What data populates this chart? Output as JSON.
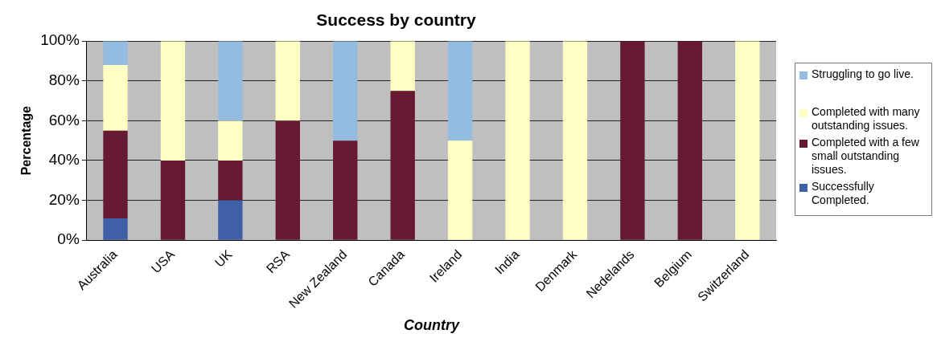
{
  "chart_data": {
    "type": "bar",
    "title": "Success by country",
    "xlabel": "Country",
    "ylabel": "Percentage",
    "stacked": true,
    "grid": "y",
    "legend": "right",
    "categories": [
      "Australia",
      "USA",
      "UK",
      "RSA",
      "New Zealand",
      "Canada",
      "Ireland",
      "India",
      "Denmark",
      "Nedelands",
      "Belgium",
      "Switzerland"
    ],
    "series": [
      {
        "name": "Successfully Completed.",
        "color": "#3f5fa6",
        "values": [
          11,
          0,
          20,
          0,
          0,
          0,
          0,
          0,
          0,
          0,
          0,
          0
        ]
      },
      {
        "name": "Completed with a few small outstanding issues.",
        "color": "#651a32",
        "values": [
          44,
          40,
          20,
          60,
          50,
          75,
          0,
          0,
          0,
          100,
          100,
          0
        ]
      },
      {
        "name": "Completed with many outstanding issues.",
        "color": "#ffffc4",
        "values": [
          33,
          60,
          20,
          40,
          0,
          25,
          50,
          100,
          100,
          0,
          0,
          100
        ]
      },
      {
        "name": "Struggling to go live.",
        "color": "#94bce0",
        "values": [
          12,
          0,
          40,
          0,
          50,
          0,
          50,
          0,
          0,
          0,
          0,
          0
        ]
      }
    ],
    "ylim": [
      0,
      100
    ],
    "yticks": [
      {
        "value": 0,
        "label": "0%"
      },
      {
        "value": 20,
        "label": "20%"
      },
      {
        "value": 40,
        "label": "40%"
      },
      {
        "value": 60,
        "label": "60%"
      },
      {
        "value": 80,
        "label": "80%"
      },
      {
        "value": 100,
        "label": "100%"
      }
    ]
  }
}
